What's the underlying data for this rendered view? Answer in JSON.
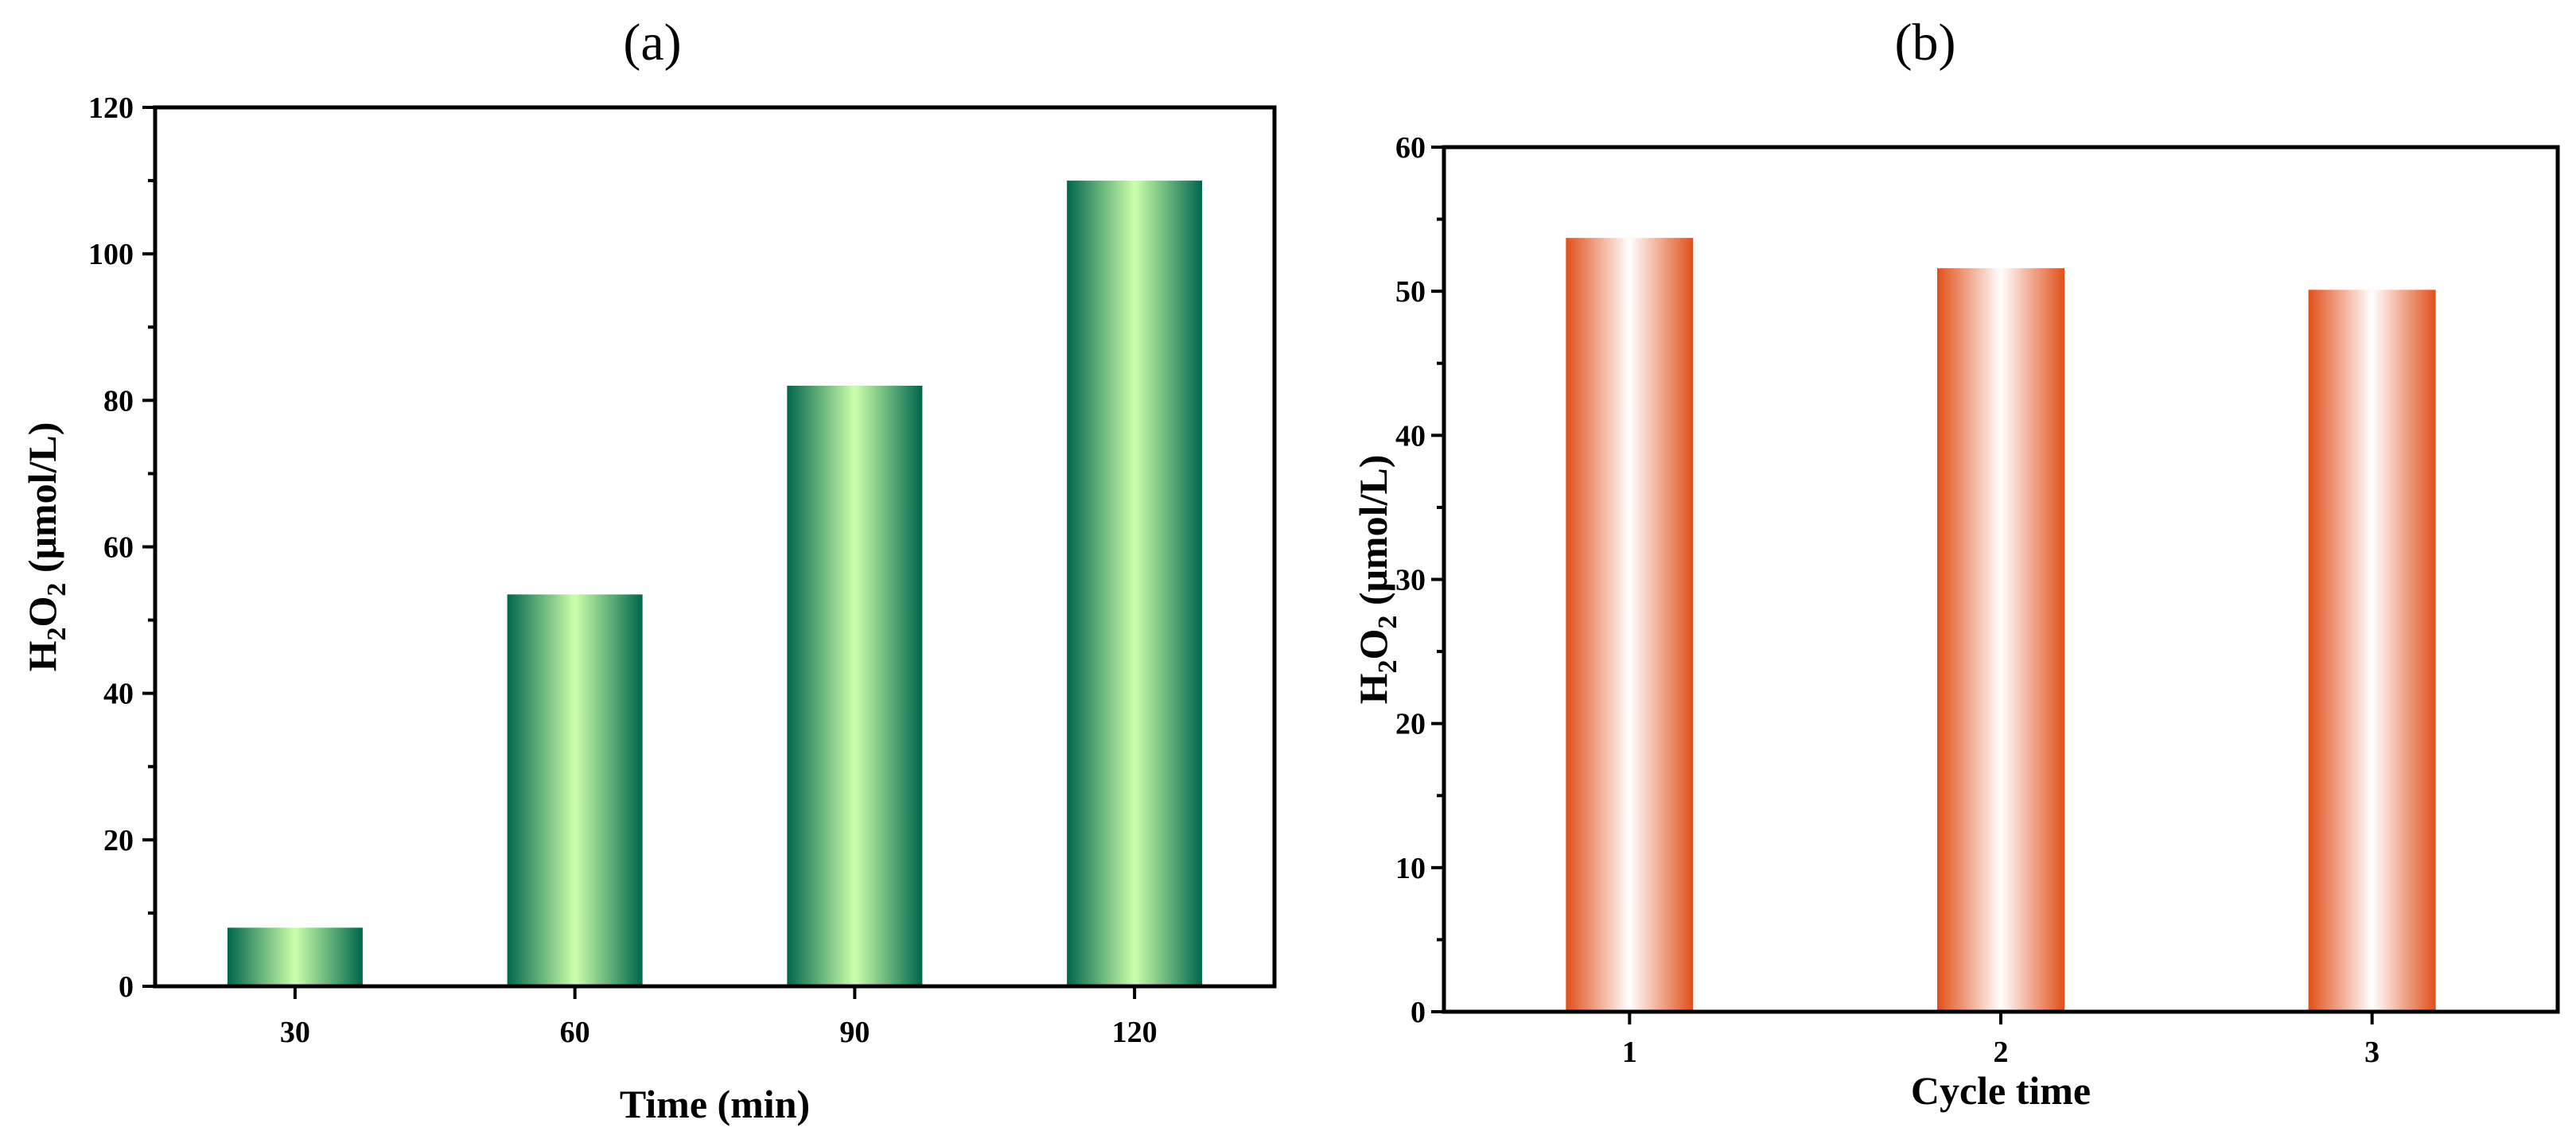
{
  "chart_data": [
    {
      "type": "bar",
      "panel_label": "(a)",
      "categories": [
        "30",
        "60",
        "90",
        "120"
      ],
      "values": [
        8,
        53.5,
        82,
        110
      ],
      "ylim": [
        0,
        120
      ],
      "yticks": [
        0,
        20,
        40,
        60,
        80,
        100,
        120
      ],
      "xlabel": "Time (min)",
      "ylabel": {
        "base": "H",
        "sub1": "2",
        "mid": "O",
        "sub2": "2",
        "unit": " (μmol/L)"
      },
      "bar_colors": {
        "edge": "#00664d",
        "center": "#ccffaa"
      },
      "grid": false,
      "legend": "none"
    },
    {
      "type": "bar",
      "panel_label": "(b)",
      "categories": [
        "1",
        "2",
        "3"
      ],
      "values": [
        53.7,
        51.6,
        50.1
      ],
      "ylim": [
        0,
        60
      ],
      "yticks": [
        0,
        10,
        20,
        30,
        40,
        50,
        60
      ],
      "xlabel": "Cycle time",
      "ylabel": {
        "base": "H",
        "sub1": "2",
        "mid": "O",
        "sub2": "2",
        "unit": " (μmol/L)"
      },
      "bar_colors": {
        "edge": "#e0501a",
        "center": "#ffffff"
      },
      "grid": false,
      "legend": "none"
    }
  ]
}
